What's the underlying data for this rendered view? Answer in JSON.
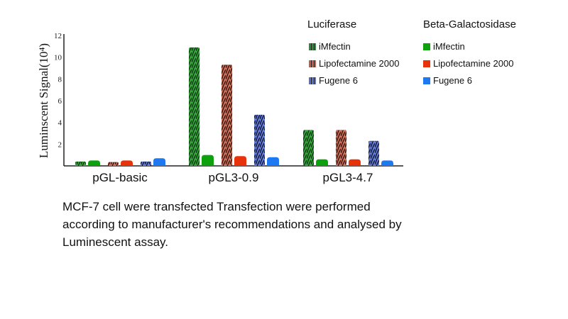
{
  "chart_data": {
    "type": "bar",
    "title": "",
    "xlabel": "",
    "ylabel": "Luminscent Signal(10⁴)",
    "ylim": [
      0,
      12
    ],
    "yticks": [
      2,
      4,
      6,
      8,
      10,
      12
    ],
    "grid": false,
    "legend_placement": "top-right",
    "categories": [
      "pGL-basic",
      "pGL3-0.9",
      "pGL3-4.7"
    ],
    "legend_groups": [
      {
        "title": "Luciferase",
        "series_names": [
          "iMfectin",
          "Lipofectamine 2000",
          "Fugene 6"
        ]
      },
      {
        "title": "Beta-Galactosidase",
        "series_names": [
          "iMfectin",
          "Lipofectamine 2000",
          "Fugene 6"
        ]
      }
    ],
    "series": [
      {
        "name": "iMfectin",
        "assay": "Luciferase",
        "color": "#2e8b3a",
        "values": [
          0.4,
          10.9,
          3.3
        ]
      },
      {
        "name": "iMfectin",
        "assay": "Beta-Galactosidase",
        "color": "#0ea10e",
        "values": [
          0.5,
          1.0,
          0.6
        ]
      },
      {
        "name": "Lipofectamine 2000",
        "assay": "Luciferase",
        "color": "#c0604a",
        "values": [
          0.35,
          9.3,
          3.3
        ]
      },
      {
        "name": "Lipofectamine 2000",
        "assay": "Beta-Galactosidase",
        "color": "#e8320a",
        "values": [
          0.5,
          0.9,
          0.6
        ]
      },
      {
        "name": "Fugene 6",
        "assay": "Luciferase",
        "color": "#5a70c8",
        "values": [
          0.4,
          4.7,
          2.3
        ]
      },
      {
        "name": "Fugene 6",
        "assay": "Beta-Galactosidase",
        "color": "#1e78f0",
        "values": [
          0.7,
          0.8,
          0.5
        ]
      }
    ]
  },
  "caption": "MCF-7 cell were transfected Transfection were performed according to manufacturer's recommendations and analysed by Luminescent assay."
}
